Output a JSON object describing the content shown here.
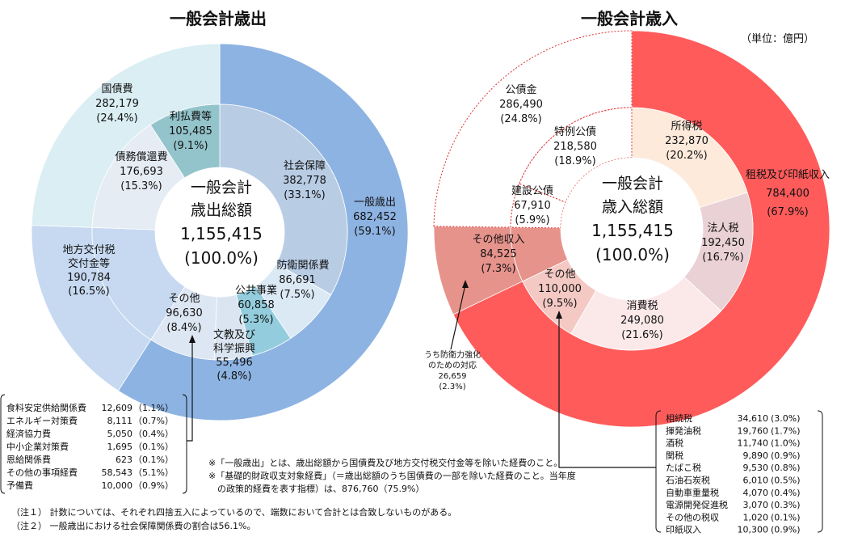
{
  "unit": "（単位：億円）",
  "expenditure": {
    "title": "一般会計歳出",
    "center": [
      "一般会計",
      "歳出総額",
      "1,155,415",
      "(100.0%)"
    ],
    "outer": [
      {
        "name": "一般歳出",
        "value": 682452,
        "pct": "(59.1%)",
        "value_text": "682,452",
        "color": "#8db3e2"
      },
      {
        "name": "地方交付税交付金等",
        "value": 190784,
        "pct": "(16.5%)",
        "value_text": "190,784",
        "color": "#c6d9f1"
      },
      {
        "name": "国債費",
        "value": 282179,
        "pct": "(24.4%)",
        "value_text": "282,179",
        "color": "#daeef3"
      }
    ],
    "inner": [
      {
        "name": "社会保障",
        "value": 382778,
        "pct": "(33.1%)",
        "value_text": "382,778",
        "color": "#b8cce4"
      },
      {
        "name": "防衛関係費",
        "value": 86691,
        "pct": "(7.5%)",
        "value_text": "86,691",
        "color": "#dbe9f5"
      },
      {
        "name": "公共事業",
        "value": 60858,
        "pct": "(5.3%)",
        "value_text": "60,858",
        "color": "#93cddd"
      },
      {
        "name": "文教及び科学振興",
        "value": 55496,
        "pct": "(4.8%)",
        "value_text": "55,496",
        "color": "#dae5f1"
      },
      {
        "name": "その他",
        "value": 96630,
        "pct": "(8.4%)",
        "value_text": "96,630",
        "color": "#dde6f3"
      },
      {
        "name": "地方交付税交付金等",
        "value": 190784,
        "pct": "",
        "value_text": "",
        "color": "#c6d9f1"
      },
      {
        "name": "債務償還費",
        "value": 176693,
        "pct": "(15.3%)",
        "value_text": "176,693",
        "color": "#e6ecf4"
      },
      {
        "name": "利払費等",
        "value": 105485,
        "pct": "(9.1%)",
        "value_text": "105,485",
        "color": "#93c4cb"
      }
    ],
    "other_breakdown": [
      {
        "name": "食料安定供給関係費",
        "value": "12,609",
        "pct": "（1.1%）"
      },
      {
        "name": "エネルギー対策費",
        "value": "8,111",
        "pct": "（0.7%）"
      },
      {
        "name": "経済協力費",
        "value": "5,050",
        "pct": "（0.4%）"
      },
      {
        "name": "中小企業対策費",
        "value": "1,695",
        "pct": "（0.1%）"
      },
      {
        "name": "恩給関係費",
        "value": "623",
        "pct": "（0.1%）"
      },
      {
        "name": "その他の事項経費",
        "value": "58,543",
        "pct": "（5.1%）"
      },
      {
        "name": "予備費",
        "value": "10,000",
        "pct": "（0.9%）"
      }
    ]
  },
  "revenue": {
    "title": "一般会計歳入",
    "center": [
      "一般会計",
      "歳入総額",
      "1,155,415",
      "(100.0%)"
    ],
    "outer": [
      {
        "name": "租税及び印紙収入",
        "value": 784400,
        "pct": "(67.9%)",
        "value_text": "784,400",
        "color": "#ff5b5b"
      },
      {
        "name": "その他収入",
        "value": 84525,
        "pct": "(7.3%)",
        "value_text": "84,525",
        "color": "#e6938c"
      },
      {
        "name": "公債金",
        "value": 286490,
        "pct": "(24.8%)",
        "value_text": "286,490",
        "color": "#ffffff"
      }
    ],
    "inner": [
      {
        "name": "所得税",
        "value": 232870,
        "pct": "(20.2%)",
        "value_text": "232,870",
        "color": "#fdeadb"
      },
      {
        "name": "法人税",
        "value": 192450,
        "pct": "(16.7%)",
        "value_text": "192,450",
        "color": "#ead1d6"
      },
      {
        "name": "消費税",
        "value": 249080,
        "pct": "(21.6%)",
        "value_text": "249,080",
        "color": "#fbe9ea"
      },
      {
        "name": "その他",
        "value": 110000,
        "pct": "(9.5%)",
        "value_text": "110,000",
        "color": "#f4c9c4"
      },
      {
        "name": "その他収入",
        "value": 84525,
        "pct": "",
        "value_text": "",
        "color": "#e6938c"
      },
      {
        "name": "建設公債",
        "value": 67910,
        "pct": "(5.9%)",
        "value_text": "67,910",
        "color": "#ffffff"
      },
      {
        "name": "特例公債",
        "value": 218580,
        "pct": "(18.9%)",
        "value_text": "218,580",
        "color": "#ffffff"
      }
    ],
    "defense_note": [
      "うち防衛力強化",
      "のための対応",
      "26,659",
      "(2.3%)"
    ],
    "other_tax_breakdown": [
      {
        "name": "相続税",
        "value": "34,610",
        "pct": "(3.0%)"
      },
      {
        "name": "揮発油税",
        "value": "19,760",
        "pct": "(1.7%)"
      },
      {
        "name": "酒税",
        "value": "11,740",
        "pct": "(1.0%)"
      },
      {
        "name": "関税",
        "value": "9,890",
        "pct": "(0.9%)"
      },
      {
        "name": "たばこ税",
        "value": "9,530",
        "pct": "(0.8%)"
      },
      {
        "name": "石油石炭税",
        "value": "6,010",
        "pct": "(0.5%)"
      },
      {
        "name": "自動車重量税",
        "value": "4,070",
        "pct": "(0.4%)"
      },
      {
        "name": "電源開発促進税",
        "value": "3,070",
        "pct": "(0.3%)"
      },
      {
        "name": "その他の税収",
        "value": "1,020",
        "pct": "(0.1%)"
      },
      {
        "name": "印紙収入",
        "value": "10,300",
        "pct": "(0.9%)"
      }
    ]
  },
  "footnotes": {
    "general_expenditure": "※「一般歳出」とは、歳出総額から国債費及び地方交付税交付金等を除いた経費のこと。",
    "basic_balance_1": "※「基礎的財政収支対象経費」（＝歳出総額のうち国債費の一部を除いた経費のこと。当年度",
    "basic_balance_2": "の政策的経費を表す指標）は、876,760（75.9%）",
    "note1": "（注１） 計数については、それぞれ四捨五入によっているので、端数において合計とは合致しないものがある。",
    "note2": "（注２） 一般歳出における社会保障関係費の割合は56.1%。"
  },
  "chart_data": [
    {
      "type": "pie",
      "title": "一般会計歳出",
      "total": 1155415,
      "outer_ring": {
        "categories": [
          "一般歳出",
          "地方交付税交付金等",
          "国債費"
        ],
        "values": [
          682452,
          190784,
          282179
        ],
        "percent": [
          59.1,
          16.5,
          24.4
        ]
      },
      "inner_ring": {
        "categories": [
          "社会保障",
          "防衛関係費",
          "公共事業",
          "文教及び科学振興",
          "その他",
          "地方交付税交付金等",
          "債務償還費",
          "利払費等"
        ],
        "values": [
          382778,
          86691,
          60858,
          55496,
          96630,
          190784,
          176693,
          105485
        ],
        "percent": [
          33.1,
          7.5,
          5.3,
          4.8,
          8.4,
          16.5,
          15.3,
          9.1
        ]
      }
    },
    {
      "type": "pie",
      "title": "一般会計歳入",
      "total": 1155415,
      "outer_ring": {
        "categories": [
          "租税及び印紙収入",
          "その他収入",
          "公債金"
        ],
        "values": [
          784400,
          84525,
          286490
        ],
        "percent": [
          67.9,
          7.3,
          24.8
        ]
      },
      "inner_ring": {
        "categories": [
          "所得税",
          "法人税",
          "消費税",
          "その他",
          "その他収入",
          "建設公債",
          "特例公債"
        ],
        "values": [
          232870,
          192450,
          249080,
          110000,
          84525,
          67910,
          218580
        ],
        "percent": [
          20.2,
          16.7,
          21.6,
          9.5,
          7.3,
          5.9,
          18.9
        ]
      }
    }
  ]
}
